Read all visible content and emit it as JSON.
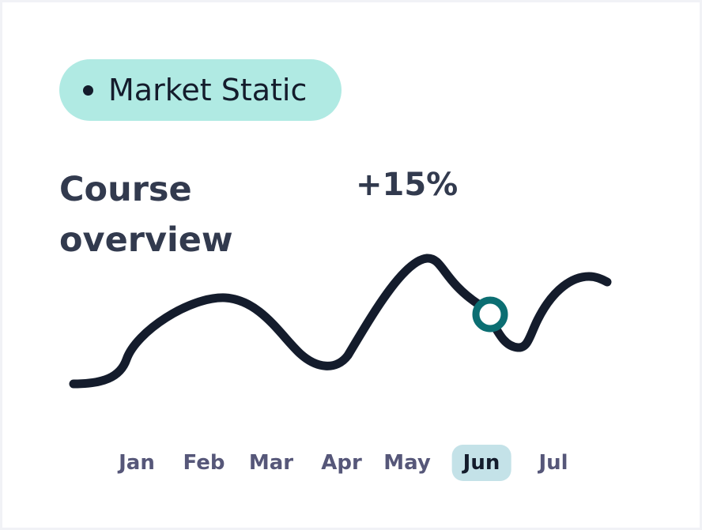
{
  "badge": {
    "label": "Market Static"
  },
  "title": "Course overview",
  "change": "+15%",
  "months": [
    "Jan",
    "Feb",
    "Mar",
    "Apr",
    "May",
    "Jun",
    "Jul"
  ],
  "selected_month": "Jun",
  "colors": {
    "badge_bg": "#b0eae3",
    "line": "#141c2c",
    "marker": "#0b6e72",
    "selected_bg": "#c4e2e8",
    "text": "#323a4e"
  }
}
